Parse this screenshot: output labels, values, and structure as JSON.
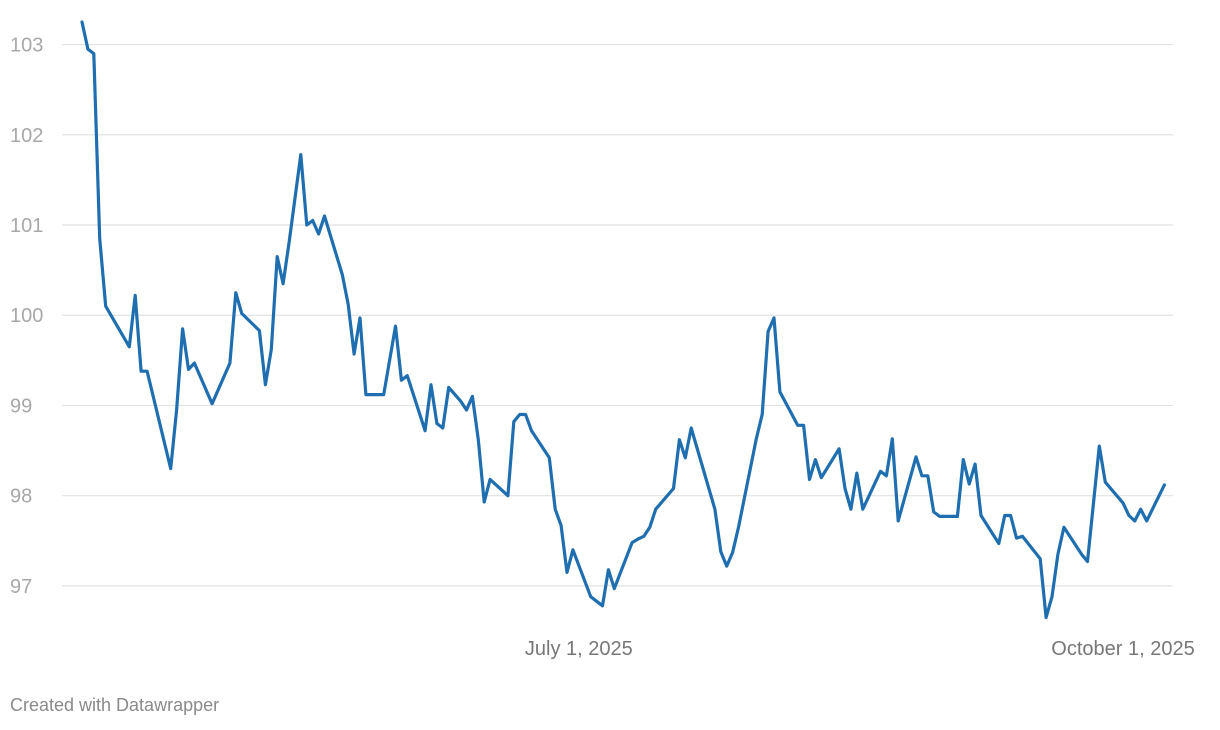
{
  "chart_data": {
    "type": "line",
    "title": "",
    "xlabel": "",
    "ylabel": "",
    "grid": true,
    "ylim": [
      96.6,
      103.25
    ],
    "xlim": [
      "2025-04-08",
      "2025-10-01"
    ],
    "y_ticks": [
      97,
      98,
      99,
      100,
      101,
      102,
      103
    ],
    "x_ticks": [
      {
        "date": "2025-07-01",
        "label": "July 1, 2025"
      },
      {
        "date": "2025-10-01",
        "label": "October 1, 2025"
      }
    ],
    "series": [
      {
        "color": "#1f6fb0",
        "points": [
          [
            "2025-04-08",
            103.25
          ],
          [
            "2025-04-09",
            102.95
          ],
          [
            "2025-04-10",
            102.9
          ],
          [
            "2025-04-11",
            100.85
          ],
          [
            "2025-04-12",
            100.1
          ],
          [
            "2025-04-16",
            99.65
          ],
          [
            "2025-04-17",
            100.22
          ],
          [
            "2025-04-18",
            99.38
          ],
          [
            "2025-04-19",
            99.38
          ],
          [
            "2025-04-23",
            98.3
          ],
          [
            "2025-04-24",
            98.95
          ],
          [
            "2025-04-25",
            99.85
          ],
          [
            "2025-04-26",
            99.4
          ],
          [
            "2025-04-27",
            99.47
          ],
          [
            "2025-04-30",
            99.02
          ],
          [
            "2025-05-03",
            99.47
          ],
          [
            "2025-05-04",
            100.25
          ],
          [
            "2025-05-05",
            100.02
          ],
          [
            "2025-05-08",
            99.83
          ],
          [
            "2025-05-09",
            99.23
          ],
          [
            "2025-05-10",
            99.62
          ],
          [
            "2025-05-11",
            100.65
          ],
          [
            "2025-05-12",
            100.35
          ],
          [
            "2025-05-13",
            100.8
          ],
          [
            "2025-05-15",
            101.78
          ],
          [
            "2025-05-16",
            101.0
          ],
          [
            "2025-05-17",
            101.05
          ],
          [
            "2025-05-18",
            100.9
          ],
          [
            "2025-05-19",
            101.1
          ],
          [
            "2025-05-22",
            100.45
          ],
          [
            "2025-05-23",
            100.12
          ],
          [
            "2025-05-24",
            99.57
          ],
          [
            "2025-05-25",
            99.97
          ],
          [
            "2025-05-26",
            99.12
          ],
          [
            "2025-05-29",
            99.12
          ],
          [
            "2025-05-31",
            99.88
          ],
          [
            "2025-06-01",
            99.28
          ],
          [
            "2025-06-02",
            99.33
          ],
          [
            "2025-06-05",
            98.72
          ],
          [
            "2025-06-06",
            99.23
          ],
          [
            "2025-06-07",
            98.8
          ],
          [
            "2025-06-08",
            98.75
          ],
          [
            "2025-06-09",
            99.2
          ],
          [
            "2025-06-11",
            99.05
          ],
          [
            "2025-06-12",
            98.95
          ],
          [
            "2025-06-13",
            99.1
          ],
          [
            "2025-06-14",
            98.62
          ],
          [
            "2025-06-15",
            97.93
          ],
          [
            "2025-06-16",
            98.18
          ],
          [
            "2025-06-19",
            98.0
          ],
          [
            "2025-06-20",
            98.82
          ],
          [
            "2025-06-21",
            98.9
          ],
          [
            "2025-06-22",
            98.9
          ],
          [
            "2025-06-23",
            98.72
          ],
          [
            "2025-06-26",
            98.42
          ],
          [
            "2025-06-27",
            97.85
          ],
          [
            "2025-06-28",
            97.67
          ],
          [
            "2025-06-29",
            97.15
          ],
          [
            "2025-06-30",
            97.4
          ],
          [
            "2025-07-03",
            96.88
          ],
          [
            "2025-07-05",
            96.78
          ],
          [
            "2025-07-06",
            97.18
          ],
          [
            "2025-07-07",
            96.97
          ],
          [
            "2025-07-10",
            97.48
          ],
          [
            "2025-07-11",
            97.52
          ],
          [
            "2025-07-12",
            97.55
          ],
          [
            "2025-07-13",
            97.65
          ],
          [
            "2025-07-14",
            97.85
          ],
          [
            "2025-07-17",
            98.08
          ],
          [
            "2025-07-18",
            98.62
          ],
          [
            "2025-07-19",
            98.42
          ],
          [
            "2025-07-20",
            98.75
          ],
          [
            "2025-07-24",
            97.85
          ],
          [
            "2025-07-25",
            97.38
          ],
          [
            "2025-07-26",
            97.22
          ],
          [
            "2025-07-27",
            97.37
          ],
          [
            "2025-07-28",
            97.65
          ],
          [
            "2025-07-31",
            98.63
          ],
          [
            "2025-08-01",
            98.9
          ],
          [
            "2025-08-02",
            99.82
          ],
          [
            "2025-08-03",
            99.97
          ],
          [
            "2025-08-04",
            99.15
          ],
          [
            "2025-08-07",
            98.78
          ],
          [
            "2025-08-08",
            98.78
          ],
          [
            "2025-08-09",
            98.18
          ],
          [
            "2025-08-10",
            98.4
          ],
          [
            "2025-08-11",
            98.2
          ],
          [
            "2025-08-14",
            98.52
          ],
          [
            "2025-08-15",
            98.08
          ],
          [
            "2025-08-16",
            97.85
          ],
          [
            "2025-08-17",
            98.25
          ],
          [
            "2025-08-18",
            97.85
          ],
          [
            "2025-08-21",
            98.27
          ],
          [
            "2025-08-22",
            98.22
          ],
          [
            "2025-08-23",
            98.63
          ],
          [
            "2025-08-24",
            97.72
          ],
          [
            "2025-08-27",
            98.43
          ],
          [
            "2025-08-28",
            98.22
          ],
          [
            "2025-08-29",
            98.22
          ],
          [
            "2025-08-30",
            97.82
          ],
          [
            "2025-08-31",
            97.77
          ],
          [
            "2025-09-03",
            97.77
          ],
          [
            "2025-09-04",
            98.4
          ],
          [
            "2025-09-05",
            98.13
          ],
          [
            "2025-09-06",
            98.35
          ],
          [
            "2025-09-07",
            97.78
          ],
          [
            "2025-09-10",
            97.47
          ],
          [
            "2025-09-11",
            97.78
          ],
          [
            "2025-09-12",
            97.78
          ],
          [
            "2025-09-13",
            97.53
          ],
          [
            "2025-09-14",
            97.55
          ],
          [
            "2025-09-17",
            97.3
          ],
          [
            "2025-09-18",
            96.65
          ],
          [
            "2025-09-19",
            96.88
          ],
          [
            "2025-09-20",
            97.35
          ],
          [
            "2025-09-21",
            97.65
          ],
          [
            "2025-09-24",
            97.35
          ],
          [
            "2025-09-25",
            97.27
          ],
          [
            "2025-09-27",
            98.55
          ],
          [
            "2025-09-28",
            98.15
          ],
          [
            "2025-10-01",
            97.92
          ],
          [
            "2025-10-02",
            97.78
          ],
          [
            "2025-10-03",
            97.72
          ],
          [
            "2025-10-04",
            97.85
          ],
          [
            "2025-10-05",
            97.72
          ],
          [
            "2025-10-08",
            98.12
          ]
        ]
      }
    ]
  },
  "footer": {
    "credit": "Created with Datawrapper"
  }
}
